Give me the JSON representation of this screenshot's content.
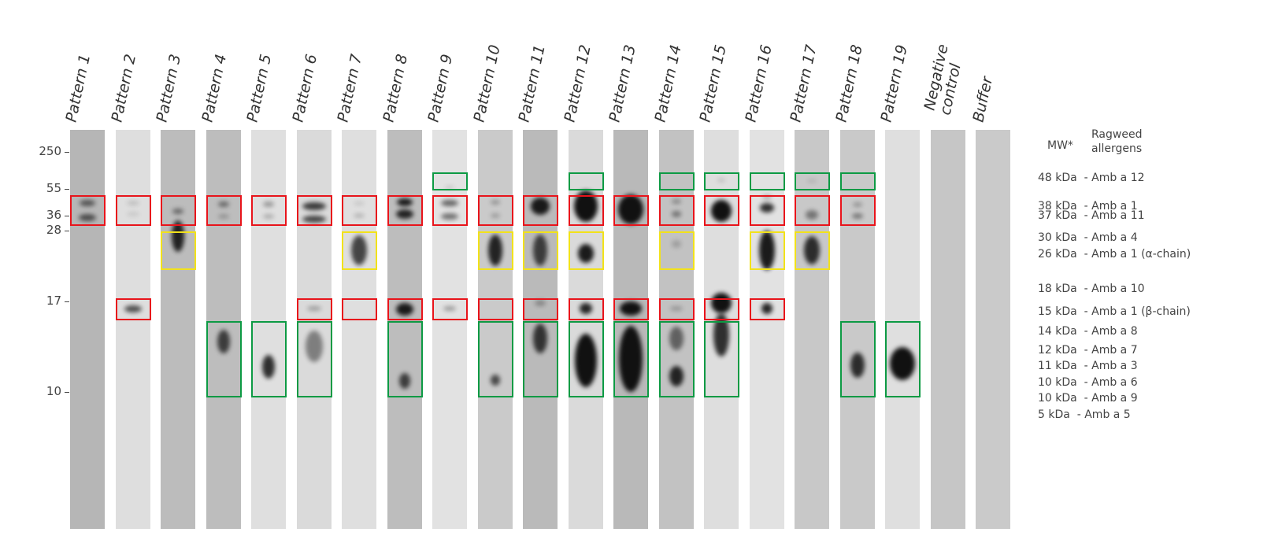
{
  "lanes": [
    "Pattern 1",
    "Pattern 2",
    "Pattern 3",
    "Pattern 4",
    "Pattern 5",
    "Pattern 6",
    "Pattern 7",
    "Pattern 8",
    "Pattern 9",
    "Pattern 10",
    "Pattern 11",
    "Pattern 12",
    "Pattern 13",
    "Pattern 14",
    "Pattern 15",
    "Pattern 16",
    "Pattern 17",
    "Pattern 18",
    "Pattern 19"
  ],
  "negative_control": {
    "line1": "Negative",
    "line2": "control"
  },
  "buffer": "Buffer",
  "mw_markers": [
    "250",
    "55",
    "36",
    "28",
    "17",
    "10"
  ],
  "legend": {
    "mw_header": "MW*",
    "allergen_header_1": "Ragweed",
    "allergen_header_2": "allergens",
    "rows": [
      "48 kDa  - Amb a 12",
      "38 kDa  - Amb a 1",
      "37 kDa  - Amb a 11",
      "30 kDa  - Amb a 4",
      "26 kDa  - Amb a 1 (α-chain)",
      "18 kDa  - Amb a 10",
      "15 kDa  - Amb a 1 (β-chain)",
      "14 kDa  - Amb a 8",
      "12 kDa  - Amb a 7",
      "11 kDa  - Amb a 3",
      "10 kDa  - Amb a 6",
      "10 kDa  - Amb a 9",
      "5 kDa  - Amb a 5"
    ]
  },
  "colors": {
    "red": "#e8141b",
    "yellow": "#f2e21a",
    "green": "#0d9a44"
  }
}
